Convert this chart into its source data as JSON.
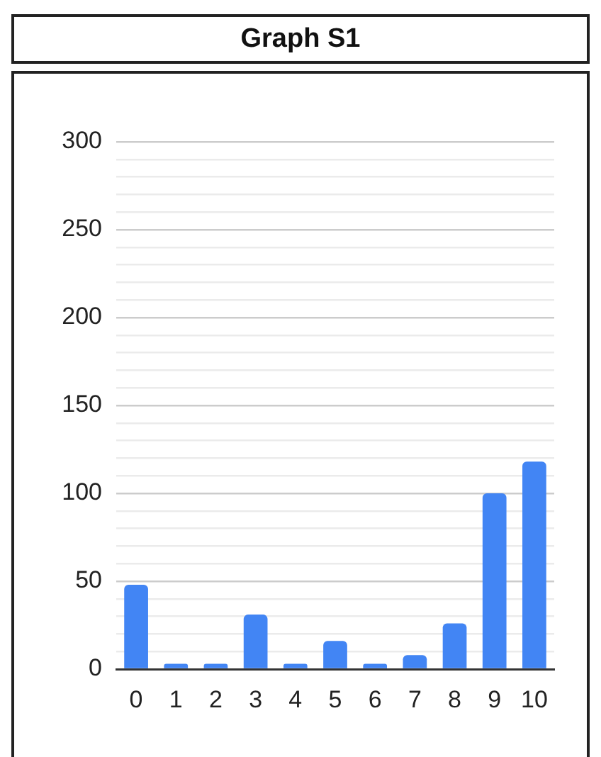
{
  "chart_data": {
    "type": "bar",
    "title": "Graph S1",
    "categories": [
      "0",
      "1",
      "2",
      "3",
      "4",
      "5",
      "6",
      "7",
      "8",
      "9",
      "10"
    ],
    "values": [
      48,
      3,
      3,
      31,
      3,
      16,
      3,
      8,
      26,
      100,
      118
    ],
    "color": "#4285f4",
    "ylim": [
      0,
      300
    ],
    "yticks": [
      0,
      {
        "value": 10,
        "label": null
      },
      {
        "value": 20,
        "label": null
      },
      {
        "value": 30,
        "label": null
      },
      {
        "value": 40,
        "label": null
      },
      50,
      {
        "value": 60,
        "label": null
      },
      {
        "value": 70,
        "label": null
      },
      {
        "value": 80,
        "label": null
      },
      {
        "value": 90,
        "label": null
      },
      100,
      {
        "value": 110,
        "label": null
      },
      {
        "value": 120,
        "label": null
      },
      {
        "value": 130,
        "label": null
      },
      {
        "value": 140,
        "label": null
      },
      150,
      {
        "value": 160,
        "label": null
      },
      {
        "value": 170,
        "label": null
      },
      {
        "value": 180,
        "label": null
      },
      {
        "value": 190,
        "label": null
      },
      200,
      {
        "value": 210,
        "label": null
      },
      {
        "value": 220,
        "label": null
      },
      {
        "value": 230,
        "label": null
      },
      {
        "value": 240,
        "label": null
      },
      250,
      {
        "value": 260,
        "label": null
      },
      {
        "value": 270,
        "label": null
      },
      {
        "value": 280,
        "label": null
      },
      {
        "value": 290,
        "label": null
      },
      300
    ],
    "grid": "y"
  }
}
